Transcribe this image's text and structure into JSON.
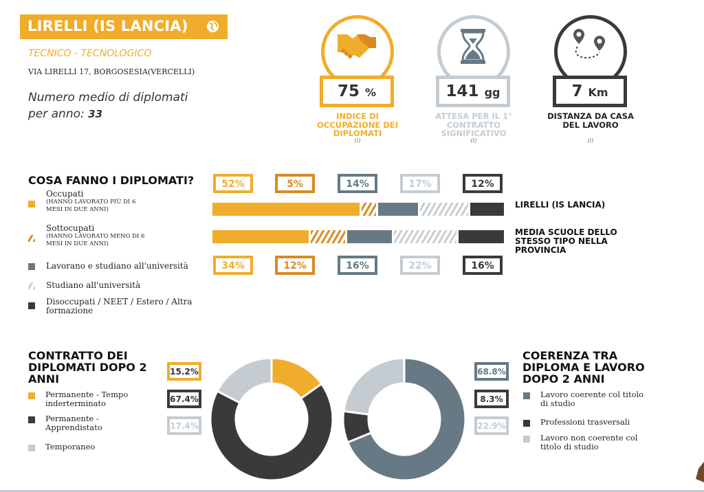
{
  "header": {
    "title": "LIRELLI (IS LANCIA)",
    "type": "TECNICO - TECNOLOGICO",
    "address": "VIA LIRELLI 17, BORGOSESIA(VERCELLI)",
    "diplomati_label_1": "Numero medio di diplomati",
    "diplomati_label_2": "per anno: ",
    "diplomati_value": "33"
  },
  "kpis": [
    {
      "value": "75",
      "unit": "%",
      "label": "INDICE DI OCCUPAZIONE DEI DIPLOMATI",
      "info": "(i)",
      "color": "#f0ad2b"
    },
    {
      "value": "141",
      "unit": "gg",
      "label": "ATTESA PER IL 1° CONTRATTO SIGNIFICATIVO",
      "info": "(i)",
      "color": "#c4ccd2"
    },
    {
      "value": "7",
      "unit": "Km",
      "label": "DISTANZA DA CASA DEL LAVORO",
      "info": "(i)",
      "color": "#3a3a3a"
    }
  ],
  "colors": {
    "orange": "#f0ad2b",
    "dark_orange": "#d98a22",
    "slate": "#667985",
    "light": "#c4ccd2",
    "dark": "#3a3a3a"
  },
  "chart_data": [
    {
      "type": "bar",
      "title": "COSA FANNO I DIPLOMATI?",
      "categories": [
        "Occupati",
        "Sottocupati",
        "Lavorano e studiano all'università",
        "Studiano all'università",
        "Disoccupati / NEET / Estero / Altra formazione"
      ],
      "series": [
        {
          "name": "LIRELLI (IS LANCIA)",
          "values": [
            52,
            5,
            14,
            17,
            12
          ],
          "labels": [
            "52%",
            "5%",
            "14%",
            "17%",
            "12%"
          ]
        },
        {
          "name": "MEDIA SCUOLE DELLO STESSO TIPO NELLA PROVINCIA",
          "values": [
            34,
            12,
            16,
            22,
            16
          ],
          "labels": [
            "34%",
            "12%",
            "16%",
            "22%",
            "16%"
          ]
        }
      ],
      "legend": [
        {
          "label": "Occupati",
          "note": "(HANNO LAVORATO PIÙ DI 6",
          "note2": "MESI IN DUE ANNI)"
        },
        {
          "label": "Sottocupati",
          "note": "(HANNO LAVORATO MENO DI 6",
          "note2": "MESI IN DUE ANNI)"
        },
        {
          "label": "Lavorano e studiano all'università"
        },
        {
          "label": "Studiano all'università"
        },
        {
          "label": "Disoccupati / NEET / Estero / Altra",
          "label2": "formazione"
        }
      ]
    },
    {
      "type": "pie",
      "title": "CONTRATTO DEI DIPLOMATI DOPO 2 ANNI",
      "categories": [
        "Permanente - Tempo inderterminato",
        "Permanente - Apprendistato",
        "Temporaneo"
      ],
      "values": [
        15.2,
        67.4,
        17.4
      ],
      "labels": [
        "15.2%",
        "67.4%",
        "17.4%"
      ],
      "colors": [
        "#f0ad2b",
        "#3a3a3a",
        "#c4ccd2"
      ],
      "legend": [
        [
          "Permanente - Tempo",
          "inderterminato"
        ],
        [
          "Permanente -",
          "Apprendistato"
        ],
        [
          "Temporaneo",
          ""
        ]
      ]
    },
    {
      "type": "pie",
      "title": "COERENZA TRA DIPLOMA E LAVORO DOPO 2 ANNI",
      "categories": [
        "Lavoro coerente col titolo di studio",
        "Professioni trasversali",
        "Lavoro non coerente col titolo di studio"
      ],
      "values": [
        68.8,
        8.3,
        22.9
      ],
      "labels": [
        "68.8%",
        "8.3%",
        "22.9%"
      ],
      "colors": [
        "#667985",
        "#3a3a3a",
        "#c4ccd2"
      ],
      "legend": [
        [
          "Lavoro coerente col titolo",
          "di studio"
        ],
        [
          "Professioni trasversali",
          ""
        ],
        [
          "Lavoro non coerente col",
          "titolo di studio"
        ]
      ]
    }
  ]
}
